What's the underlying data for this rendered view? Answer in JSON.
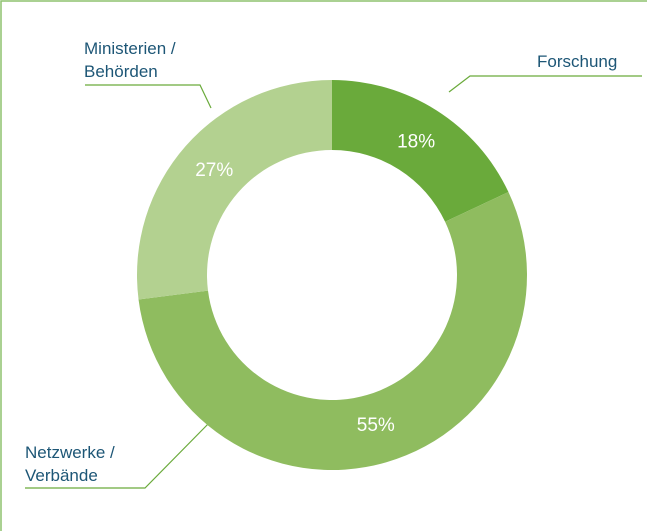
{
  "chart_data": {
    "type": "pie",
    "donut": true,
    "categories": [
      "Forschung",
      "Netzwerke /\nVerbände",
      "Ministerien /\nBehörden"
    ],
    "values": [
      18,
      55,
      27
    ],
    "value_labels": [
      "18%",
      "55%",
      "27%"
    ],
    "colors": [
      "#6aaa3b",
      "#8fbc5f",
      "#b3d190"
    ]
  }
}
